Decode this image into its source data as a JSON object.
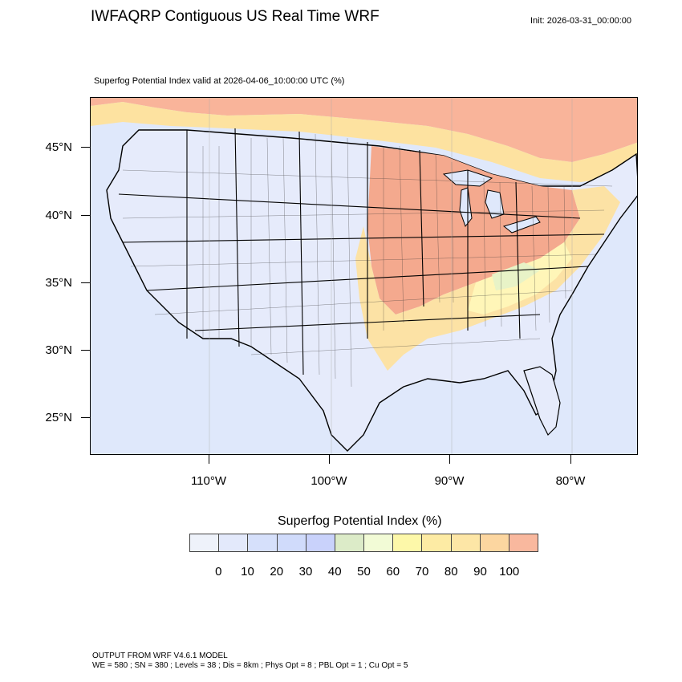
{
  "header": {
    "title": "IWFAQRP Contiguous US Real Time WRF",
    "init": "Init: 2026-03-31_00:00:00"
  },
  "map": {
    "subtitle": "Superfog Potential Index valid at 2026-04-06_10:00:00 UTC   (%)",
    "lat_labels": [
      "45°N",
      "40°N",
      "35°N",
      "30°N",
      "25°N"
    ],
    "lon_labels": [
      "110°W",
      "100°W",
      "90°W",
      "80°W"
    ],
    "region_colors": {
      "ocean": "#dfe8fb",
      "land_low": "#e6ebfb",
      "canada_high": "#f9b49a",
      "midwest_high": "#f4a98e",
      "mid_moderate": "#fde2a0",
      "appalachia": "#fff6b8",
      "green_band": "#e8f3c7",
      "borders": "#000000"
    }
  },
  "colorbar": {
    "title": "Superfog Potential Index  (%)",
    "colors": [
      "#eef2fa",
      "#e3e9fb",
      "#d6e0fb",
      "#d0dbfb",
      "#c9d2fb",
      "#dcebc8",
      "#f2fbd6",
      "#fdf8a9",
      "#fdeba4",
      "#fde6a6",
      "#fcd6a0",
      "#f9b89e"
    ],
    "labels": [
      "0",
      "10",
      "20",
      "30",
      "40",
      "50",
      "60",
      "70",
      "80",
      "90",
      "100"
    ]
  },
  "footer": {
    "model": "OUTPUT FROM WRF V4.6.1 MODEL",
    "params": "WE = 580 ; SN = 380 ; Levels = 38 ; Dis = 8km ; Phys Opt = 8 ; PBL Opt = 1 ; Cu Opt = 5"
  }
}
